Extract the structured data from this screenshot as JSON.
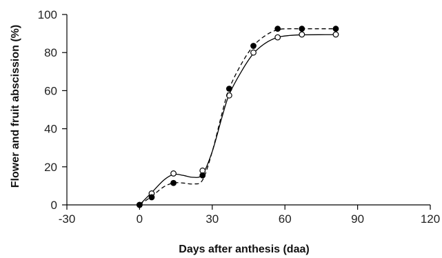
{
  "chart_data": {
    "type": "line",
    "title": "",
    "xlabel": "Days after anthesis (daa)",
    "ylabel": "Flower and fruit abscission (%)",
    "xlim": [
      -30,
      120
    ],
    "ylim": [
      0,
      100
    ],
    "xticks": [
      -30,
      0,
      30,
      60,
      90,
      120
    ],
    "yticks": [
      0,
      20,
      40,
      60,
      80,
      100
    ],
    "grid": false,
    "legend": "none",
    "series": [
      {
        "marker": "open-circle",
        "line_style": "solid",
        "color": "#000000",
        "points": [
          [
            0,
            0
          ],
          [
            5,
            6
          ],
          [
            14,
            16.5
          ],
          [
            26,
            18
          ],
          [
            37,
            57.5
          ],
          [
            47,
            80
          ],
          [
            57,
            88
          ],
          [
            67,
            89.5
          ],
          [
            81,
            89.5
          ]
        ],
        "curve": [
          [
            0,
            0
          ],
          [
            5,
            6.5
          ],
          [
            10,
            13
          ],
          [
            14,
            16
          ],
          [
            18,
            15.5
          ],
          [
            22,
            14.5
          ],
          [
            26,
            16
          ],
          [
            30,
            28
          ],
          [
            34,
            46
          ],
          [
            37,
            58
          ],
          [
            42,
            70
          ],
          [
            47,
            79.5
          ],
          [
            52,
            85
          ],
          [
            57,
            88
          ],
          [
            62,
            89
          ],
          [
            67,
            89.3
          ],
          [
            74,
            89.4
          ],
          [
            81,
            89.4
          ]
        ]
      },
      {
        "marker": "filled-circle",
        "line_style": "dashed",
        "color": "#000000",
        "points": [
          [
            0,
            0
          ],
          [
            5,
            4
          ],
          [
            14,
            11.5
          ],
          [
            26,
            15.5
          ],
          [
            37,
            61
          ],
          [
            47,
            83.5
          ],
          [
            57,
            92.5
          ],
          [
            67,
            92.5
          ],
          [
            81,
            92.5
          ]
        ],
        "curve": [
          [
            0,
            0
          ],
          [
            5,
            4.5
          ],
          [
            10,
            9.5
          ],
          [
            14,
            11.5
          ],
          [
            18,
            11.5
          ],
          [
            22,
            11
          ],
          [
            26,
            13
          ],
          [
            30,
            28
          ],
          [
            34,
            48
          ],
          [
            37,
            61
          ],
          [
            42,
            74
          ],
          [
            47,
            83.5
          ],
          [
            52,
            89
          ],
          [
            57,
            92
          ],
          [
            62,
            92.5
          ],
          [
            67,
            92.5
          ],
          [
            74,
            92.5
          ],
          [
            81,
            92.5
          ]
        ]
      }
    ]
  }
}
